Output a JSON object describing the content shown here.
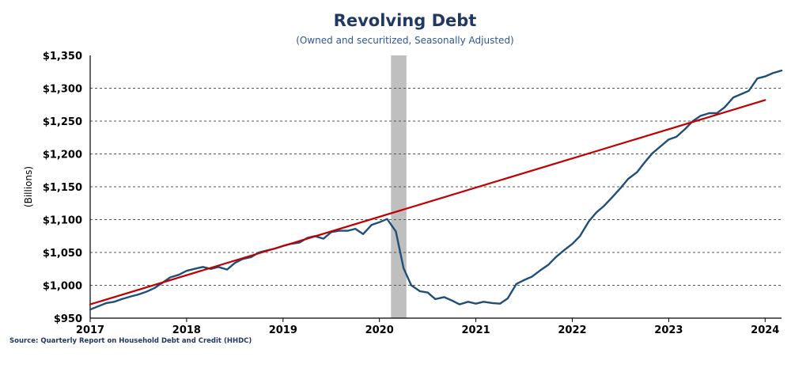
{
  "chart_data": {
    "type": "line",
    "title": "Revolving Debt",
    "subtitle": "(Owned and securitized, Seasonally Adjusted)",
    "ylabel": "(Billions)",
    "xlabel": "",
    "source": "Source: Quarterly Report on Household Debt and Credit (HHDC)",
    "xlim": [
      2017.0,
      2024.17
    ],
    "ylim": [
      950,
      1350
    ],
    "y_ticks": [
      950,
      1000,
      1050,
      1100,
      1150,
      1200,
      1250,
      1300,
      1350
    ],
    "y_tick_labels": [
      "$950",
      "$1,000",
      "$1,050",
      "$1,100",
      "$1,150",
      "$1,200",
      "$1,250",
      "$1,300",
      "$1,350"
    ],
    "x_ticks": [
      2017,
      2018,
      2019,
      2020,
      2021,
      2022,
      2023,
      2024
    ],
    "x_tick_labels": [
      "2017",
      "2018",
      "2019",
      "2020",
      "2021",
      "2022",
      "2023",
      "2024"
    ],
    "grid": "horizontal dashed",
    "recession_shading": [
      2020.12,
      2020.28
    ],
    "series": [
      {
        "color": "#1f4e79",
        "x": [
          2017.0,
          2017.08,
          2017.17,
          2017.25,
          2017.33,
          2017.42,
          2017.5,
          2017.58,
          2017.67,
          2017.75,
          2017.83,
          2017.92,
          2018.0,
          2018.08,
          2018.17,
          2018.25,
          2018.33,
          2018.42,
          2018.5,
          2018.58,
          2018.67,
          2018.75,
          2018.83,
          2018.92,
          2019.0,
          2019.08,
          2019.17,
          2019.25,
          2019.33,
          2019.42,
          2019.5,
          2019.58,
          2019.67,
          2019.75,
          2019.83,
          2019.92,
          2020.0,
          2020.08,
          2020.17,
          2020.25,
          2020.33,
          2020.42,
          2020.5,
          2020.58,
          2020.67,
          2020.75,
          2020.83,
          2020.92,
          2021.0,
          2021.08,
          2021.17,
          2021.25,
          2021.33,
          2021.42,
          2021.5,
          2021.58,
          2021.67,
          2021.75,
          2021.83,
          2021.92,
          2022.0,
          2022.08,
          2022.17,
          2022.25,
          2022.33,
          2022.42,
          2022.5,
          2022.58,
          2022.67,
          2022.75,
          2022.83,
          2022.92,
          2023.0,
          2023.08,
          2023.17,
          2023.25,
          2023.33,
          2023.42,
          2023.5,
          2023.58,
          2023.67,
          2023.75,
          2023.83,
          2023.92,
          2024.0,
          2024.08,
          2024.17
        ],
        "values": [
          963,
          968,
          973,
          975,
          979,
          983,
          986,
          990,
          996,
          1004,
          1012,
          1016,
          1022,
          1025,
          1028,
          1025,
          1028,
          1024,
          1034,
          1040,
          1043,
          1050,
          1053,
          1056,
          1060,
          1063,
          1065,
          1072,
          1075,
          1071,
          1081,
          1083,
          1083,
          1086,
          1078,
          1092,
          1096,
          1101,
          1082,
          1026,
          1000,
          991,
          989,
          979,
          982,
          977,
          971,
          975,
          972,
          975,
          973,
          972,
          980,
          1002,
          1008,
          1013,
          1023,
          1031,
          1043,
          1054,
          1063,
          1075,
          1097,
          1111,
          1121,
          1135,
          1148,
          1162,
          1172,
          1187,
          1201,
          1212,
          1222,
          1226,
          1238,
          1250,
          1258,
          1262,
          1262,
          1271,
          1286,
          1291,
          1296,
          1315,
          1318,
          1323,
          1327
        ]
      },
      {
        "color": "#c00000",
        "x": [
          2017.0,
          2024.0
        ],
        "values": [
          971,
          1282
        ]
      }
    ]
  }
}
